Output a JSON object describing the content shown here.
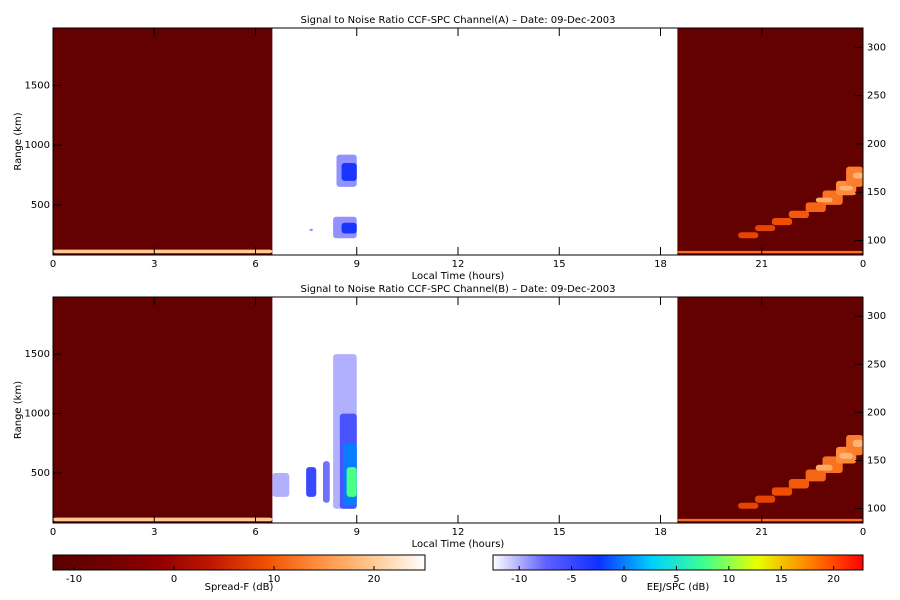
{
  "chart_data": [
    {
      "type": "heatmap",
      "title": "Signal to Noise Ratio CCF-SPC Channel(A) – Date: 09-Dec-2003",
      "xlabel": "Local Time (hours)",
      "ylabel": "Range (km)",
      "xlim": [
        0,
        24
      ],
      "xticks": [
        0,
        3,
        6,
        9,
        12,
        15,
        18,
        21,
        {
          "value": 24,
          "label": "0"
        }
      ],
      "ylim": [
        80,
        1980
      ],
      "yticks": [
        500,
        1000,
        1500
      ],
      "y2lim": [
        85,
        320
      ],
      "y2ticks": [
        100,
        150,
        200,
        250,
        300
      ],
      "spread_f": [
        {
          "x": [
            0,
            6.5
          ],
          "y": [
            80,
            1980
          ],
          "v": -10
        },
        {
          "x": [
            18.5,
            24
          ],
          "y": [
            80,
            1980
          ],
          "v": -10
        },
        {
          "x": [
            0,
            6.5
          ],
          "y": [
            95,
            125
          ],
          "v": 20
        },
        {
          "x": [
            18.5,
            24
          ],
          "y": [
            95,
            115
          ],
          "v": 12
        },
        {
          "x": [
            20.3,
            20.9
          ],
          "y": [
            220,
            270
          ],
          "v": 8
        },
        {
          "x": [
            20.8,
            21.4
          ],
          "y": [
            280,
            330
          ],
          "v": 8
        },
        {
          "x": [
            21.3,
            21.9
          ],
          "y": [
            330,
            390
          ],
          "v": 9
        },
        {
          "x": [
            21.8,
            22.4
          ],
          "y": [
            390,
            450
          ],
          "v": 10
        },
        {
          "x": [
            22.3,
            22.9
          ],
          "y": [
            440,
            520
          ],
          "v": 11
        },
        {
          "x": [
            22.8,
            23.4
          ],
          "y": [
            500,
            620
          ],
          "v": 12
        },
        {
          "x": [
            23.2,
            23.8
          ],
          "y": [
            580,
            700
          ],
          "v": 14
        },
        {
          "x": [
            23.5,
            24
          ],
          "y": [
            650,
            820
          ],
          "v": 13
        },
        {
          "x": [
            22.6,
            23.1
          ],
          "y": [
            520,
            560
          ],
          "v": 17
        },
        {
          "x": [
            23.3,
            23.7
          ],
          "y": [
            620,
            660
          ],
          "v": 18
        },
        {
          "x": [
            23.7,
            24
          ],
          "y": [
            720,
            770
          ],
          "v": 18
        }
      ],
      "eej": [
        {
          "x": [
            8.4,
            9
          ],
          "y": [
            650,
            920
          ],
          "v": -9
        },
        {
          "x": [
            8.55,
            9
          ],
          "y": [
            700,
            850
          ],
          "v": -3
        },
        {
          "x": [
            8.3,
            9
          ],
          "y": [
            220,
            400
          ],
          "v": -9
        },
        {
          "x": [
            8.55,
            9
          ],
          "y": [
            260,
            350
          ],
          "v": -3
        },
        {
          "x": [
            7.6,
            7.7
          ],
          "y": [
            280,
            300
          ],
          "v": -9
        }
      ]
    },
    {
      "type": "heatmap",
      "title": "Signal to Noise Ratio CCF-SPC Channel(B) – Date: 09-Dec-2003",
      "xlabel": "Local Time (hours)",
      "ylabel": "Range (km)",
      "xlim": [
        0,
        24
      ],
      "xticks": [
        0,
        3,
        6,
        9,
        12,
        15,
        18,
        21,
        {
          "value": 24,
          "label": "0"
        }
      ],
      "ylim": [
        80,
        1980
      ],
      "yticks": [
        500,
        1000,
        1500
      ],
      "y2lim": [
        85,
        320
      ],
      "y2ticks": [
        100,
        150,
        200,
        250,
        300
      ],
      "spread_f": [
        {
          "x": [
            0,
            6.5
          ],
          "y": [
            80,
            1980
          ],
          "v": -10
        },
        {
          "x": [
            18.5,
            24
          ],
          "y": [
            80,
            1980
          ],
          "v": -10
        },
        {
          "x": [
            0,
            6.5
          ],
          "y": [
            95,
            125
          ],
          "v": 20
        },
        {
          "x": [
            18.5,
            24
          ],
          "y": [
            95,
            115
          ],
          "v": 12
        },
        {
          "x": [
            20.3,
            20.9
          ],
          "y": [
            200,
            250
          ],
          "v": 8
        },
        {
          "x": [
            20.8,
            21.4
          ],
          "y": [
            250,
            310
          ],
          "v": 8
        },
        {
          "x": [
            21.3,
            21.9
          ],
          "y": [
            310,
            380
          ],
          "v": 9
        },
        {
          "x": [
            21.8,
            22.4
          ],
          "y": [
            370,
            450
          ],
          "v": 10
        },
        {
          "x": [
            22.3,
            22.9
          ],
          "y": [
            430,
            530
          ],
          "v": 11
        },
        {
          "x": [
            22.8,
            23.4
          ],
          "y": [
            500,
            640
          ],
          "v": 12
        },
        {
          "x": [
            23.2,
            23.8
          ],
          "y": [
            580,
            720
          ],
          "v": 14
        },
        {
          "x": [
            23.5,
            24
          ],
          "y": [
            650,
            820
          ],
          "v": 13
        },
        {
          "x": [
            22.6,
            23.1
          ],
          "y": [
            520,
            570
          ],
          "v": 17
        },
        {
          "x": [
            23.3,
            23.7
          ],
          "y": [
            620,
            670
          ],
          "v": 18
        },
        {
          "x": [
            23.7,
            24
          ],
          "y": [
            720,
            780
          ],
          "v": 18
        }
      ],
      "eej": [
        {
          "x": [
            8.3,
            9
          ],
          "y": [
            200,
            1500
          ],
          "v": -10
        },
        {
          "x": [
            8.5,
            9
          ],
          "y": [
            200,
            1000
          ],
          "v": -6
        },
        {
          "x": [
            8.6,
            9
          ],
          "y": [
            230,
            750
          ],
          "v": 0
        },
        {
          "x": [
            8.7,
            9
          ],
          "y": [
            300,
            550
          ],
          "v": 8
        },
        {
          "x": [
            7.5,
            7.8
          ],
          "y": [
            300,
            550
          ],
          "v": -5
        },
        {
          "x": [
            8.0,
            8.2
          ],
          "y": [
            250,
            600
          ],
          "v": -8
        },
        {
          "x": [
            6.5,
            7.0
          ],
          "y": [
            300,
            500
          ],
          "v": -10
        }
      ]
    }
  ],
  "colorbars": [
    {
      "label": "Spread-F (dB)",
      "clim": [
        -12.1,
        25.1
      ],
      "ticks": [
        -10,
        0,
        10,
        20
      ],
      "colors": [
        "#5a0000",
        "#700000",
        "#900000",
        "#c01800",
        "#f05000",
        "#ff9040",
        "#ffc890",
        "#ffffff"
      ]
    },
    {
      "label": "EEJ/SPC (dB)",
      "clim": [
        -12.5,
        22.8
      ],
      "ticks": [
        -10,
        -5,
        0,
        5,
        10,
        15,
        20
      ],
      "colors": [
        "#ffffff",
        "#6060ff",
        "#1030ff",
        "#00d0ff",
        "#40ff90",
        "#e8ff00",
        "#ff8000",
        "#ff0000"
      ]
    }
  ]
}
